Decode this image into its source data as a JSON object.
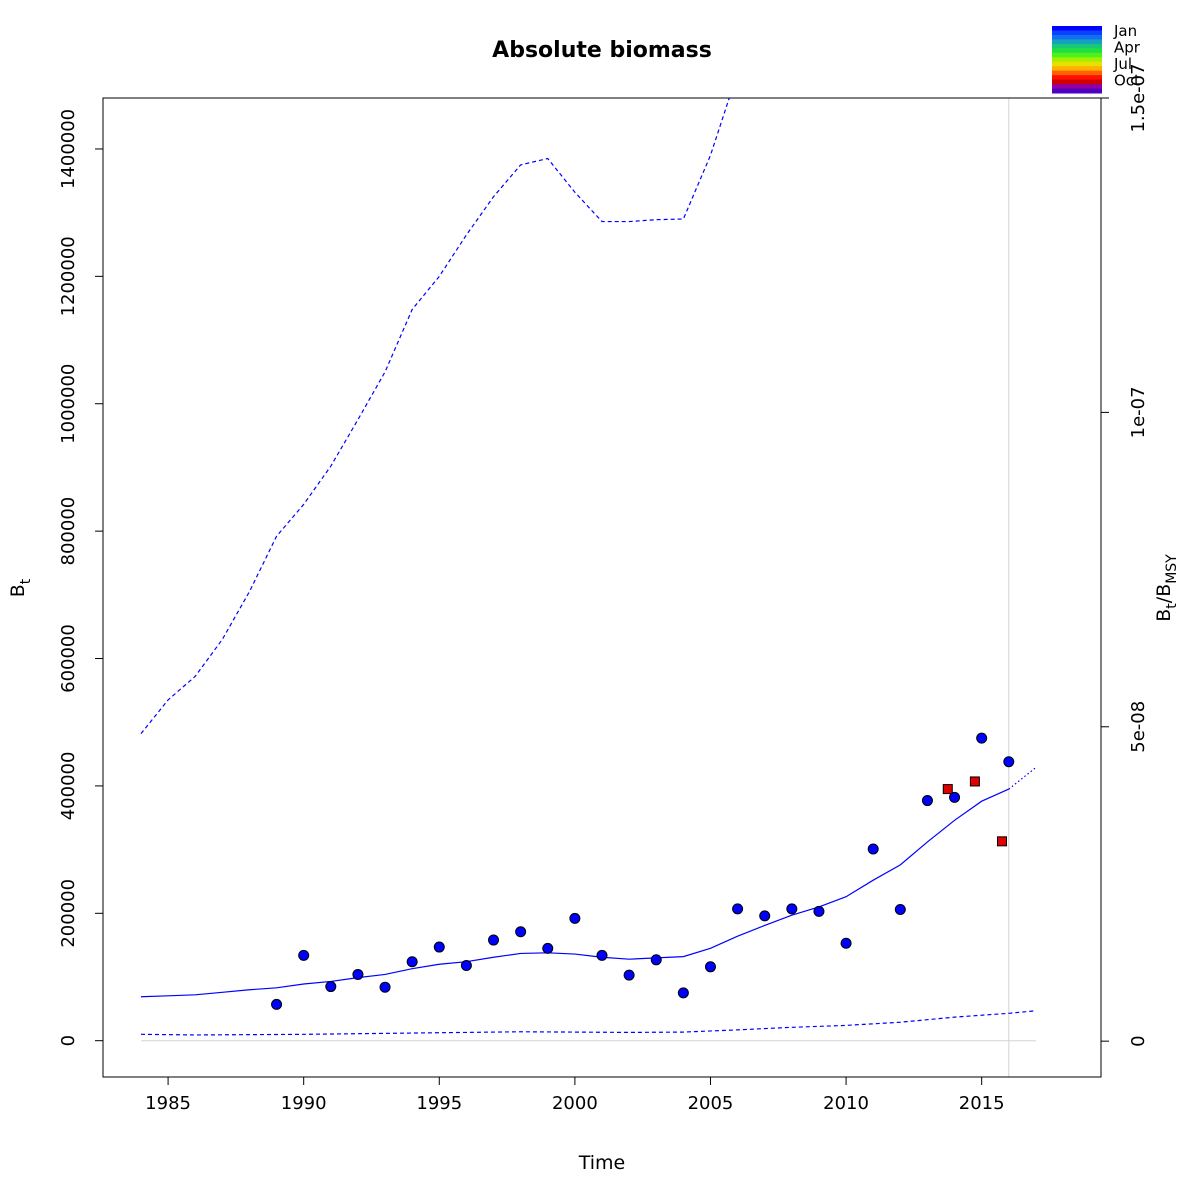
{
  "chart_data": {
    "type": "line",
    "title": "Absolute biomass",
    "xlabel": "Time",
    "ylabel": {
      "main": "B",
      "sub": "t"
    },
    "y2label": {
      "main": "B",
      "sub1": "t",
      "sep": "/B",
      "sub2": "MSY"
    },
    "xlim": [
      1982.6,
      2019.4
    ],
    "ylim": [
      -57000,
      1480000
    ],
    "y2lim": [
      -5.7e-09,
      1.5e-07
    ],
    "xticks": [
      {
        "value": 1985,
        "label": "1985"
      },
      {
        "value": 1990,
        "label": "1990"
      },
      {
        "value": 1995,
        "label": "1995"
      },
      {
        "value": 2000,
        "label": "2000"
      },
      {
        "value": 2005,
        "label": "2005"
      },
      {
        "value": 2010,
        "label": "2010"
      },
      {
        "value": 2015,
        "label": "2015"
      }
    ],
    "yticks": [
      {
        "value": 0,
        "label": "0"
      },
      {
        "value": 200000,
        "label": "200000"
      },
      {
        "value": 400000,
        "label": "400000"
      },
      {
        "value": 600000,
        "label": "600000"
      },
      {
        "value": 800000,
        "label": "800000"
      },
      {
        "value": 1000000,
        "label": "1000000"
      },
      {
        "value": 1200000,
        "label": "1200000"
      },
      {
        "value": 1400000,
        "label": "1400000"
      }
    ],
    "y2ticks": [
      {
        "value": 0,
        "label": "0"
      },
      {
        "value": 5e-08,
        "label": "5e-08"
      },
      {
        "value": 1e-07,
        "label": "1e-07"
      },
      {
        "value": 1.5e-07,
        "label": "1.5e-07"
      }
    ],
    "grid": false,
    "reference_lines": {
      "horizontal_zero": true,
      "vertical_x": 2016
    },
    "series": [
      {
        "style": "solid",
        "color": "#0000ff",
        "x": [
          1984,
          1985,
          1986,
          1987,
          1988,
          1989,
          1990,
          1991,
          1992,
          1993,
          1994,
          1995,
          1996,
          1997,
          1998,
          1999,
          2000,
          2001,
          2002,
          2003,
          2004,
          2005,
          2006,
          2007,
          2008,
          2009,
          2010,
          2011,
          2012,
          2013,
          2014,
          2015,
          2016
        ],
        "y": [
          69000,
          70500,
          72000,
          76000,
          80000,
          83000,
          89000,
          93000,
          99000,
          104000,
          113000,
          120000,
          124000,
          131000,
          137000,
          138000,
          136000,
          131000,
          128000,
          130000,
          132000,
          145000,
          164000,
          181000,
          197000,
          210000,
          226000,
          252000,
          276000,
          312000,
          346000,
          376000,
          395000
        ]
      },
      {
        "style": "dotted",
        "color": "#0000ff",
        "x": [
          2016,
          2017
        ],
        "y": [
          395000,
          429000
        ]
      },
      {
        "style": "dashed",
        "color": "#0000ff",
        "x": [
          1984,
          1985,
          1986,
          1987,
          1988,
          1989,
          1990,
          1991,
          1992,
          1993,
          1994,
          1995,
          1996,
          1997,
          1998,
          1999,
          2000,
          2001,
          2002,
          2003,
          2004,
          2005,
          2006
        ],
        "y": [
          482000,
          535000,
          572000,
          630000,
          705000,
          792000,
          842000,
          902000,
          975000,
          1050000,
          1148000,
          1200000,
          1265000,
          1325000,
          1375000,
          1385000,
          1332000,
          1286000,
          1286000,
          1289000,
          1290000,
          1390000,
          1520000
        ]
      },
      {
        "style": "dashed",
        "color": "#0000ff",
        "x": [
          1984,
          1986,
          1988,
          1990,
          1992,
          1994,
          1996,
          1998,
          2000,
          2002,
          2004,
          2006,
          2008,
          2010,
          2012,
          2014,
          2016,
          2017
        ],
        "y": [
          10000,
          9000,
          9500,
          10000,
          11000,
          12000,
          13000,
          14000,
          13500,
          13000,
          13500,
          17000,
          21000,
          24000,
          29000,
          37000,
          43000,
          47000
        ]
      }
    ],
    "observations": [
      {
        "marker": "circle",
        "fill": "#0000ff",
        "stroke": "#000000",
        "x": [
          1989,
          1990,
          1991,
          1992,
          1993,
          1994,
          1995,
          1996,
          1997,
          1998,
          1999,
          2000,
          2001,
          2002,
          2003,
          2004,
          2005,
          2006,
          2007,
          2008,
          2009,
          2010,
          2011,
          2012,
          2013,
          2014,
          2015,
          2016
        ],
        "y": [
          57000,
          134000,
          85000,
          104000,
          84000,
          124000,
          147000,
          118000,
          158000,
          171000,
          145000,
          192000,
          134000,
          103000,
          127000,
          75000,
          116000,
          207000,
          196000,
          207000,
          203000,
          153000,
          301000,
          206000,
          377000,
          382000,
          475000,
          438000
        ]
      },
      {
        "marker": "square",
        "fill": "#e00000",
        "stroke": "#000000",
        "x": [
          2013.75,
          2014.75,
          2015.75
        ],
        "y": [
          395000,
          407000,
          313000
        ]
      }
    ],
    "legend": {
      "placement": "top-right",
      "type": "color-ramp",
      "colors": [
        "#0000ff",
        "#0a40ff",
        "#1070ee",
        "#14a0c0",
        "#18c878",
        "#20e040",
        "#50f020",
        "#a0f000",
        "#e8e000",
        "#ffb000",
        "#ff6000",
        "#ff1000",
        "#d00000",
        "#9000a0",
        "#5000c0"
      ],
      "labels": [
        "Jan",
        "Apr",
        "Jul",
        "Oct"
      ]
    }
  }
}
